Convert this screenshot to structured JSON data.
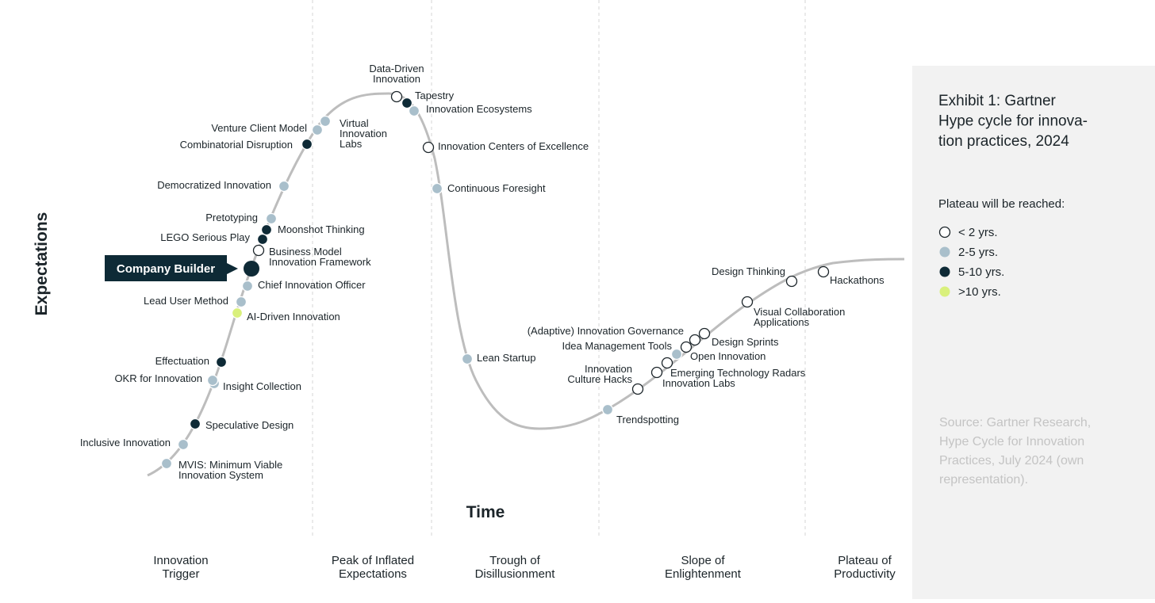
{
  "title_lines": [
    "Exhibit 1: Gartner",
    "Hype cycle for innova-",
    "tion practices, 2024"
  ],
  "legend": {
    "title": "Plateau will be reached:",
    "items": [
      {
        "label": "< 2 yrs.",
        "color": "#ffffff"
      },
      {
        "label": "2-5 yrs.",
        "color": "#a9bfcb"
      },
      {
        "label": "5-10 yrs.",
        "color": "#0e2a36"
      },
      {
        "label": ">10 yrs.",
        "color": "#d9f07c"
      }
    ]
  },
  "source_lines": [
    "Source: Gartner Research,",
    "Hype Cycle for Innovation",
    "Practices, July 2024 (own",
    "representation)."
  ],
  "axes": {
    "y": "Expectations",
    "x": "Time"
  },
  "phases": [
    [
      "Innovation",
      "Trigger"
    ],
    [
      "Peak of Inflated",
      "Expectations"
    ],
    [
      "Trough of",
      "Disillusionment"
    ],
    [
      "Slope of",
      "Enlightenment"
    ],
    [
      "Plateau of",
      "Productivity"
    ]
  ],
  "callout": {
    "label": "Company Builder",
    "group": 2
  },
  "points": [
    {
      "label": [
        "MVIS: Minimum Viable",
        "Innovation System"
      ],
      "group": 1
    },
    {
      "label": [
        "Inclusive Innovation"
      ],
      "group": 1
    },
    {
      "label": [
        "Speculative Design"
      ],
      "group": 2
    },
    {
      "label": [
        "Insight Collection"
      ],
      "group": 1
    },
    {
      "label": [
        "OKR for Innovation"
      ],
      "group": 1
    },
    {
      "label": [
        "Effectuation"
      ],
      "group": 2
    },
    {
      "label": [
        "AI-Driven Innovation"
      ],
      "group": 3
    },
    {
      "label": [
        "Lead User Method"
      ],
      "group": 1
    },
    {
      "label": [
        "Chief Innovation Officer"
      ],
      "group": 1
    },
    {
      "label": [
        "Business Model",
        "Innovation Framework"
      ],
      "group": 0
    },
    {
      "label": [
        "LEGO Serious Play"
      ],
      "group": 2
    },
    {
      "label": [
        "Moonshot Thinking"
      ],
      "group": 2
    },
    {
      "label": [
        "Pretotyping"
      ],
      "group": 1
    },
    {
      "label": [
        "Democratized Innovation"
      ],
      "group": 1
    },
    {
      "label": [
        "Combinatorial Disruption"
      ],
      "group": 2
    },
    {
      "label": [
        "Venture Client Model"
      ],
      "group": 1
    },
    {
      "label": [
        "Virtual",
        "Innovation",
        "Labs"
      ],
      "group": 1
    },
    {
      "label": [
        "Data-Driven",
        "Innovation"
      ],
      "group": 0
    },
    {
      "label": [
        "Tapestry"
      ],
      "group": 2
    },
    {
      "label": [
        "Innovation Ecosystems"
      ],
      "group": 1
    },
    {
      "label": [
        "Innovation Centers of Excellence"
      ],
      "group": 0
    },
    {
      "label": [
        "Continuous Foresight"
      ],
      "group": 1
    },
    {
      "label": [
        "Lean Startup"
      ],
      "group": 1
    },
    {
      "label": [
        "Trendspotting"
      ],
      "group": 1
    },
    {
      "label": [
        "Innovation",
        "Culture Hacks"
      ],
      "group": 0
    },
    {
      "label": [
        "Innovation Labs"
      ],
      "group": 0
    },
    {
      "label": [
        "Emerging Technology Radars"
      ],
      "group": 0
    },
    {
      "label": [
        "Open Innovation"
      ],
      "group": 1
    },
    {
      "label": [
        "Idea Management Tools"
      ],
      "group": 0
    },
    {
      "label": [
        "(Adaptive) Innovation Governance"
      ],
      "group": 0
    },
    {
      "label": [
        "Design Sprints"
      ],
      "group": 0
    },
    {
      "label": [
        "Visual Collaboration",
        "Applications"
      ],
      "group": 0
    },
    {
      "label": [
        "Design Thinking"
      ],
      "group": 0
    },
    {
      "label": [
        "Hackathons"
      ],
      "group": 0
    }
  ]
}
